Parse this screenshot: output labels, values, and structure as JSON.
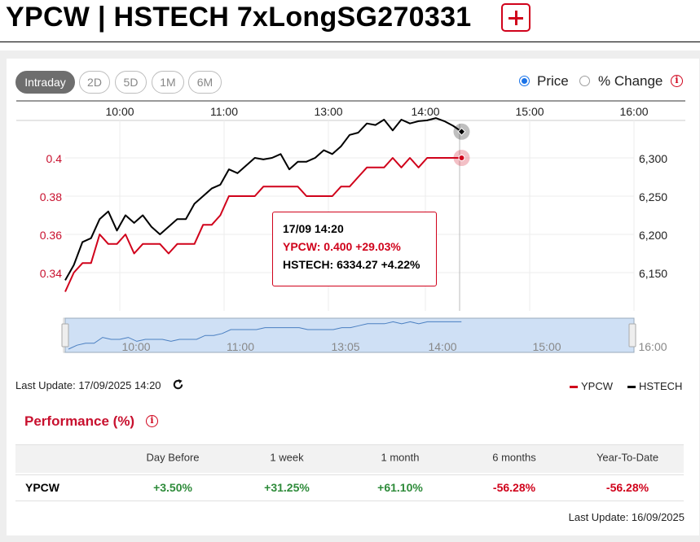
{
  "header": {
    "title": "YPCW | HSTECH 7xLongSG270331",
    "add_icon": "plus-icon",
    "accent": "#d0021b"
  },
  "range_buttons": [
    {
      "label": "Intraday",
      "active": true
    },
    {
      "label": "2D",
      "active": false
    },
    {
      "label": "5D",
      "active": false
    },
    {
      "label": "1M",
      "active": false
    },
    {
      "label": "6M",
      "active": false
    }
  ],
  "mode": {
    "options": [
      "Price",
      "% Change"
    ],
    "selected": "Price",
    "info_icon": "info-icon"
  },
  "chart_data": {
    "type": "line",
    "x_tick_labels": [
      "10:00",
      "11:00",
      "13:00",
      "14:00",
      "15:00",
      "16:00"
    ],
    "left_axis_ticks": [
      "0.4",
      "0.38",
      "0.36",
      "0.34"
    ],
    "right_axis_ticks": [
      "6,300",
      "6,250",
      "6,200",
      "6,150"
    ],
    "ylim_left": [
      0.33,
      0.41
    ],
    "ylim_right": [
      6125,
      6345
    ],
    "series": [
      {
        "name": "YPCW",
        "axis": "left",
        "color": "#d0021b",
        "x": [
          "09:30",
          "09:35",
          "09:40",
          "09:45",
          "09:50",
          "09:55",
          "10:00",
          "10:05",
          "10:10",
          "10:15",
          "10:20",
          "10:25",
          "10:30",
          "10:35",
          "10:40",
          "10:45",
          "10:50",
          "10:55",
          "11:00",
          "11:05",
          "11:10",
          "11:15",
          "11:20",
          "11:25",
          "11:30",
          "11:35",
          "11:40",
          "11:45",
          "11:50",
          "11:55",
          "13:00",
          "13:05",
          "13:10",
          "13:15",
          "13:20",
          "13:25",
          "13:30",
          "13:35",
          "13:40",
          "13:45",
          "13:50",
          "13:55",
          "14:00",
          "14:05",
          "14:10",
          "14:15",
          "14:20"
        ],
        "values": [
          0.33,
          0.34,
          0.345,
          0.345,
          0.36,
          0.355,
          0.355,
          0.36,
          0.35,
          0.355,
          0.355,
          0.355,
          0.35,
          0.355,
          0.355,
          0.355,
          0.365,
          0.365,
          0.37,
          0.38,
          0.38,
          0.38,
          0.38,
          0.385,
          0.385,
          0.385,
          0.385,
          0.385,
          0.38,
          0.38,
          0.38,
          0.38,
          0.385,
          0.385,
          0.39,
          0.395,
          0.395,
          0.395,
          0.4,
          0.395,
          0.4,
          0.395,
          0.4,
          0.4,
          0.4,
          0.4,
          0.4
        ]
      },
      {
        "name": "HSTECH",
        "axis": "right",
        "color": "#000000",
        "x": [
          "09:30",
          "09:35",
          "09:40",
          "09:45",
          "09:50",
          "09:55",
          "10:00",
          "10:05",
          "10:10",
          "10:15",
          "10:20",
          "10:25",
          "10:30",
          "10:35",
          "10:40",
          "10:45",
          "10:50",
          "10:55",
          "11:00",
          "11:05",
          "11:10",
          "11:15",
          "11:20",
          "11:25",
          "11:30",
          "11:35",
          "11:40",
          "11:45",
          "11:50",
          "11:55",
          "13:00",
          "13:05",
          "13:10",
          "13:15",
          "13:20",
          "13:25",
          "13:30",
          "13:35",
          "13:40",
          "13:45",
          "13:50",
          "13:55",
          "14:00",
          "14:05",
          "14:10",
          "14:15",
          "14:20"
        ],
        "values": [
          6140,
          6160,
          6190,
          6195,
          6220,
          6230,
          6205,
          6225,
          6215,
          6225,
          6210,
          6200,
          6210,
          6220,
          6220,
          6240,
          6250,
          6260,
          6265,
          6285,
          6280,
          6290,
          6300,
          6298,
          6300,
          6305,
          6285,
          6295,
          6295,
          6300,
          6310,
          6305,
          6315,
          6330,
          6333,
          6345,
          6343,
          6350,
          6336,
          6350,
          6345,
          6348,
          6349,
          6352,
          6348,
          6342,
          6334.27
        ]
      }
    ],
    "grid": true
  },
  "tooltip": {
    "datetime": "17/09 14:20",
    "ypcw": "YPCW: 0.400 +29.03%",
    "hstech": "HSTECH: 6334.27 +4.22%"
  },
  "navigator": {
    "labels": [
      "10:00",
      "11:00",
      "13:05",
      "14:00",
      "15:00",
      "16:00"
    ]
  },
  "last_update": {
    "text": "Last Update: 17/09/2025 14:20",
    "refresh_icon": "refresh-icon"
  },
  "legend": [
    {
      "label": "YPCW",
      "color": "#d0021b"
    },
    {
      "label": "HSTECH",
      "color": "#000000"
    }
  ],
  "performance": {
    "title": "Performance (%)",
    "columns": [
      "Day Before",
      "1 week",
      "1 month",
      "6 months",
      "Year-To-Date"
    ],
    "row_label": "YPCW",
    "values": [
      "+3.50%",
      "+31.25%",
      "+61.10%",
      "-56.28%",
      "-56.28%"
    ],
    "update": "Last Update: 16/09/2025"
  }
}
